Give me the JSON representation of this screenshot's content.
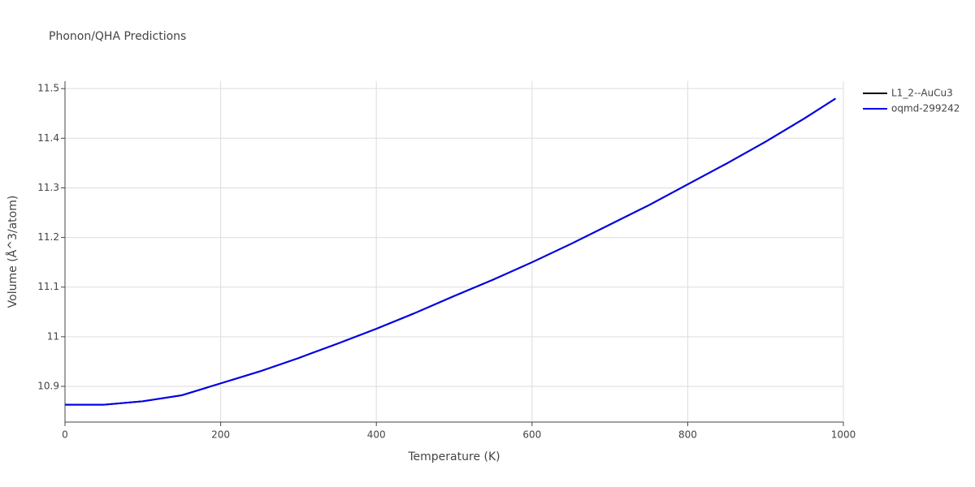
{
  "chart_data": {
    "type": "line",
    "title": "Phonon/QHA Predictions",
    "x_label": "Temperature (K)",
    "y_label": "Volume (Å^3/atom)",
    "x": [
      0,
      50,
      100,
      150,
      200,
      250,
      300,
      350,
      400,
      450,
      500,
      550,
      600,
      650,
      700,
      750,
      800,
      850,
      900,
      950,
      990
    ],
    "series": [
      {
        "name": "L1_2--AuCu3",
        "color": "#000000",
        "values": [
          10.863,
          10.863,
          10.87,
          10.882,
          10.906,
          10.93,
          10.957,
          10.986,
          11.016,
          11.048,
          11.082,
          11.115,
          11.15,
          11.187,
          11.226,
          11.265,
          11.307,
          11.349,
          11.393,
          11.44,
          11.48
        ]
      },
      {
        "name": "oqmd-299242",
        "color": "#0000ee",
        "values": [
          10.863,
          10.863,
          10.87,
          10.882,
          10.906,
          10.93,
          10.957,
          10.986,
          11.016,
          11.048,
          11.082,
          11.115,
          11.15,
          11.187,
          11.226,
          11.265,
          11.307,
          11.349,
          11.393,
          11.44,
          11.48
        ]
      }
    ],
    "xlim": [
      0,
      1000
    ],
    "xticks": [
      0,
      200,
      400,
      600,
      800,
      1000
    ],
    "ylim": [
      10.828,
      11.515
    ],
    "yticks": [
      10.9,
      11,
      11.1,
      11.2,
      11.3,
      11.4,
      11.5
    ],
    "grid": true,
    "legend": "right"
  }
}
